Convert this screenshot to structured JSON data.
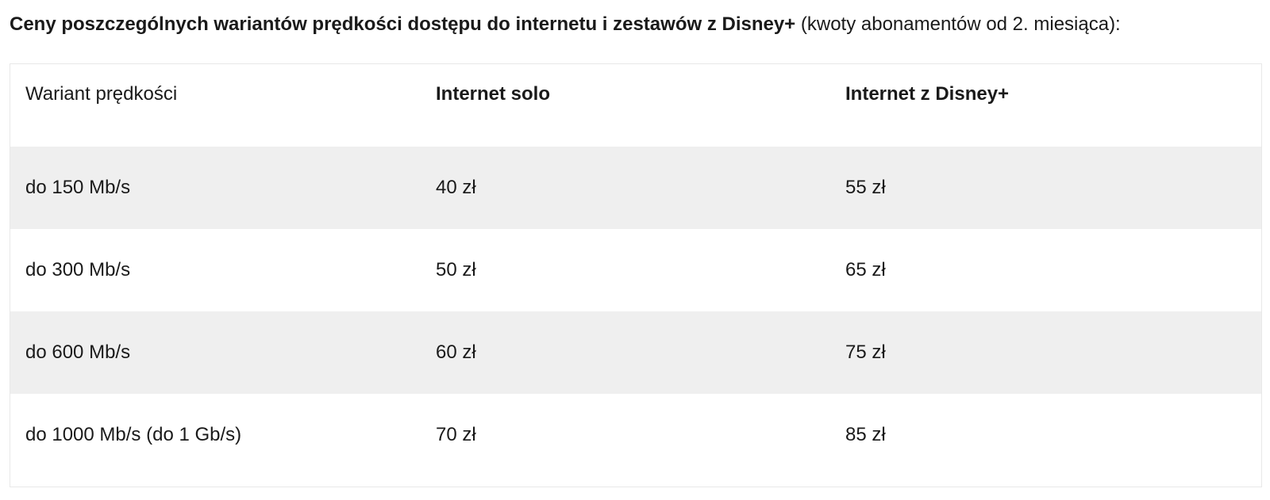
{
  "caption": {
    "bold": "Ceny poszczególnych wariantów prędkości dostępu do internetu i zestawów z Disney+",
    "regular": " (kwoty abonamentów od 2. miesiąca):"
  },
  "table": {
    "headers": [
      "Wariant prędkości",
      "Internet solo",
      "Internet z Disney+"
    ],
    "rows": [
      [
        "do 150 Mb/s",
        "40 zł",
        "55 zł"
      ],
      [
        "do 300 Mb/s",
        "50 zł",
        "65 zł"
      ],
      [
        "do 600 Mb/s",
        "60 zł",
        "75 zł"
      ],
      [
        "do 1000 Mb/s (do 1 Gb/s)",
        "70 zł",
        "85 zł"
      ]
    ]
  }
}
